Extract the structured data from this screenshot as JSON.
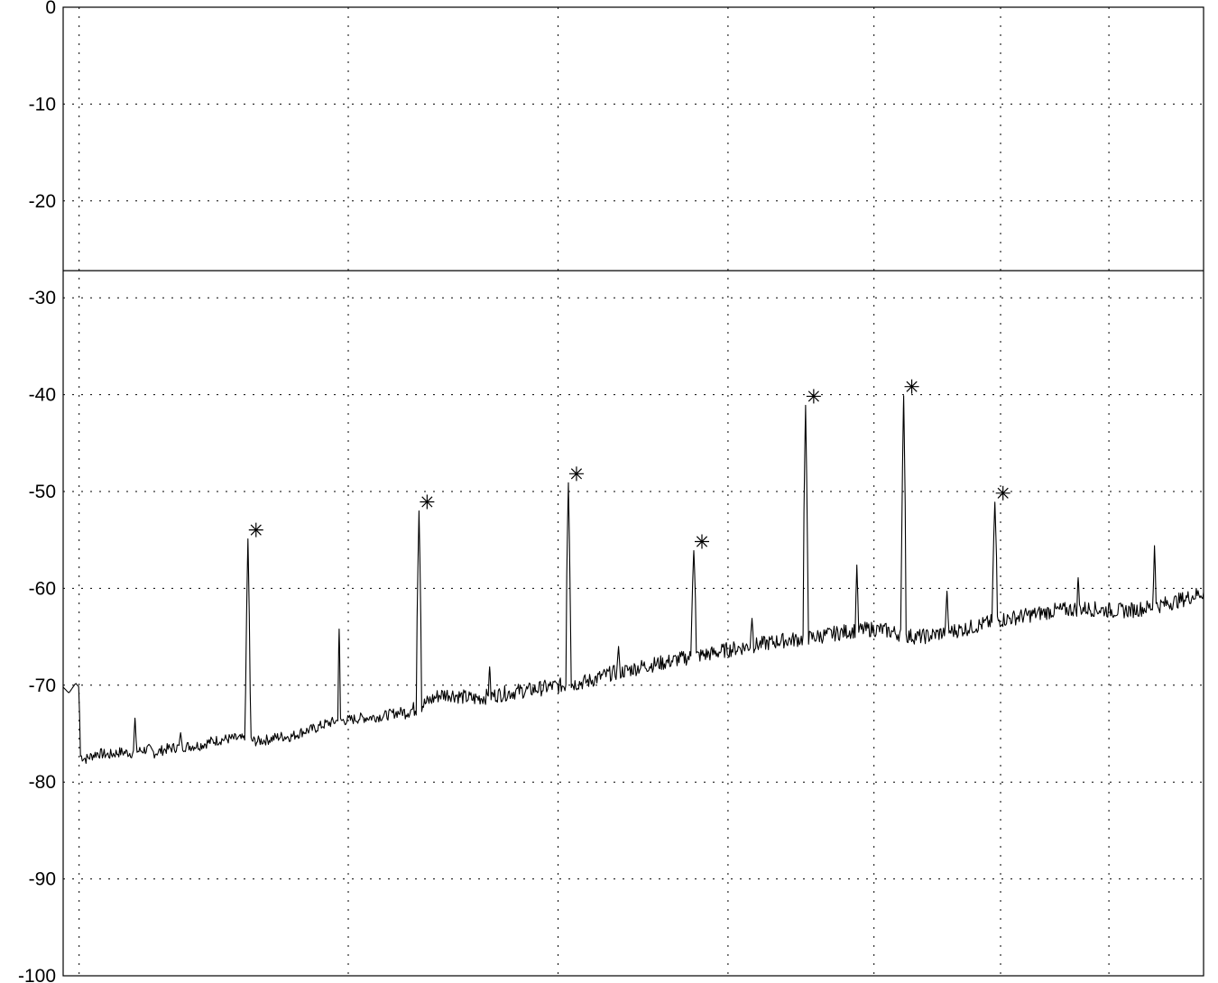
{
  "chart_data": {
    "type": "line",
    "title": "",
    "xlabel": "",
    "ylabel": "",
    "ylim": [
      -100,
      0
    ],
    "xlim": [
      0,
      1000
    ],
    "yticks": [
      0,
      -10,
      -20,
      -30,
      -40,
      -50,
      -60,
      -70,
      -80,
      -90,
      -100
    ],
    "ytick_labels": [
      "0",
      "-10",
      "-20",
      "-30",
      "-40",
      "-50",
      "-60",
      "-70",
      "-80",
      "-90",
      "-100"
    ],
    "x_gridlines": [
      14,
      250,
      434,
      583,
      711,
      822,
      917
    ],
    "grid": true,
    "grid_style": "dotted",
    "threshold_line": -27.2,
    "spectrum_floor": [
      [
        0,
        -70.2
      ],
      [
        5,
        -70.8
      ],
      [
        11,
        -69.8
      ],
      [
        14,
        -70.2
      ],
      [
        15,
        -77.3
      ],
      [
        20,
        -77.6
      ],
      [
        30,
        -77.0
      ],
      [
        40,
        -77.2
      ],
      [
        50,
        -76.9
      ],
      [
        60,
        -77.0
      ],
      [
        70,
        -76.7
      ],
      [
        75,
        -76.6
      ],
      [
        80,
        -77.0
      ],
      [
        90,
        -76.6
      ],
      [
        100,
        -76.4
      ],
      [
        110,
        -76.3
      ],
      [
        120,
        -76.2
      ],
      [
        130,
        -75.8
      ],
      [
        140,
        -75.6
      ],
      [
        150,
        -75.5
      ],
      [
        160,
        -75.6
      ],
      [
        170,
        -75.8
      ],
      [
        180,
        -75.6
      ],
      [
        190,
        -75.3
      ],
      [
        200,
        -75.3
      ],
      [
        210,
        -74.8
      ],
      [
        220,
        -74.5
      ],
      [
        230,
        -74.0
      ],
      [
        240,
        -73.7
      ],
      [
        250,
        -73.6
      ],
      [
        260,
        -73.4
      ],
      [
        270,
        -73.3
      ],
      [
        280,
        -73.2
      ],
      [
        290,
        -72.9
      ],
      [
        300,
        -72.7
      ],
      [
        310,
        -72.4
      ],
      [
        320,
        -71.7
      ],
      [
        330,
        -71.0
      ],
      [
        340,
        -70.9
      ],
      [
        350,
        -71.2
      ],
      [
        360,
        -71.4
      ],
      [
        370,
        -71.2
      ],
      [
        380,
        -71.0
      ],
      [
        390,
        -70.8
      ],
      [
        400,
        -70.6
      ],
      [
        410,
        -70.5
      ],
      [
        420,
        -70.3
      ],
      [
        430,
        -70.1
      ],
      [
        440,
        -70.0
      ],
      [
        450,
        -69.8
      ],
      [
        460,
        -69.6
      ],
      [
        470,
        -69.2
      ],
      [
        480,
        -68.8
      ],
      [
        490,
        -68.6
      ],
      [
        500,
        -68.3
      ],
      [
        510,
        -68.0
      ],
      [
        520,
        -67.8
      ],
      [
        530,
        -67.6
      ],
      [
        540,
        -67.3
      ],
      [
        550,
        -67.1
      ],
      [
        560,
        -66.9
      ],
      [
        570,
        -66.7
      ],
      [
        580,
        -66.4
      ],
      [
        590,
        -66.2
      ],
      [
        600,
        -66.0
      ],
      [
        610,
        -65.8
      ],
      [
        620,
        -65.6
      ],
      [
        630,
        -65.4
      ],
      [
        640,
        -65.3
      ],
      [
        650,
        -65.2
      ],
      [
        660,
        -65.0
      ],
      [
        670,
        -64.8
      ],
      [
        680,
        -64.6
      ],
      [
        690,
        -64.4
      ],
      [
        700,
        -64.3
      ],
      [
        710,
        -64.2
      ],
      [
        720,
        -64.3
      ],
      [
        730,
        -64.6
      ],
      [
        740,
        -64.9
      ],
      [
        750,
        -65.0
      ],
      [
        760,
        -64.9
      ],
      [
        770,
        -64.6
      ],
      [
        780,
        -64.4
      ],
      [
        790,
        -64.2
      ],
      [
        800,
        -63.9
      ],
      [
        810,
        -63.6
      ],
      [
        820,
        -63.3
      ],
      [
        830,
        -63.1
      ],
      [
        840,
        -62.9
      ],
      [
        850,
        -62.7
      ],
      [
        860,
        -62.5
      ],
      [
        870,
        -62.3
      ],
      [
        880,
        -62.2
      ],
      [
        890,
        -62.1
      ],
      [
        900,
        -62.1
      ],
      [
        910,
        -62.2
      ],
      [
        920,
        -62.3
      ],
      [
        930,
        -62.3
      ],
      [
        940,
        -62.2
      ],
      [
        950,
        -62.0
      ],
      [
        960,
        -61.8
      ],
      [
        970,
        -61.5
      ],
      [
        980,
        -61.2
      ],
      [
        990,
        -60.8
      ],
      [
        1000,
        -60.4
      ]
    ],
    "marked_peaks": [
      {
        "x": 162,
        "y": -54.9
      },
      {
        "x": 312,
        "y": -52.0
      },
      {
        "x": 443,
        "y": -49.1
      },
      {
        "x": 553,
        "y": -56.1
      },
      {
        "x": 651,
        "y": -41.1
      },
      {
        "x": 737,
        "y": -40.1
      },
      {
        "x": 817,
        "y": -51.1
      }
    ],
    "spurs": [
      {
        "x": 63,
        "y": -73.4
      },
      {
        "x": 103,
        "y": -74.9
      },
      {
        "x": 242,
        "y": -64.2
      },
      {
        "x": 374,
        "y": -68.1
      },
      {
        "x": 487,
        "y": -66.0
      },
      {
        "x": 604,
        "y": -63.1
      },
      {
        "x": 696,
        "y": -57.6
      },
      {
        "x": 775,
        "y": -60.3
      },
      {
        "x": 890,
        "y": -58.9
      },
      {
        "x": 957,
        "y": -55.6
      }
    ],
    "colors": {
      "trace": "#000000",
      "grid": "#000000",
      "frame": "#000000",
      "background": "#ffffff"
    }
  }
}
